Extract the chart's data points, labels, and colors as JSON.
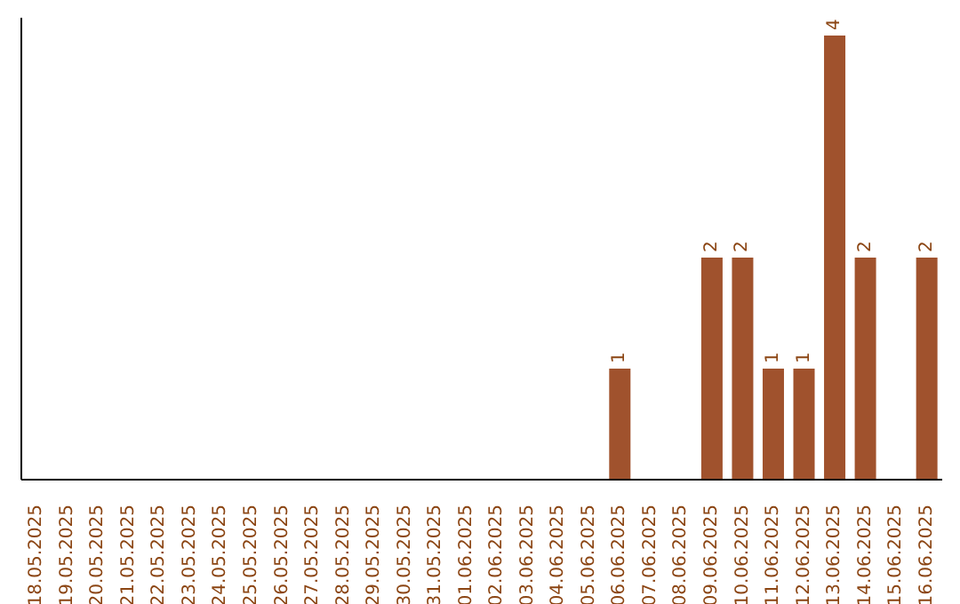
{
  "chart_data": {
    "type": "bar",
    "categories": [
      "18.05.2025",
      "19.05.2025",
      "20.05.2025",
      "21.05.2025",
      "22.05.2025",
      "23.05.2025",
      "24.05.2025",
      "25.05.2025",
      "26.05.2025",
      "27.05.2025",
      "28.05.2025",
      "29.05.2025",
      "30.05.2025",
      "31.05.2025",
      "01.06.2025",
      "02.06.2025",
      "03.06.2025",
      "04.06.2025",
      "05.06.2025",
      "06.06.2025",
      "07.06.2025",
      "08.06.2025",
      "09.06.2025",
      "10.06.2025",
      "11.06.2025",
      "12.06.2025",
      "13.06.2025",
      "14.06.2025",
      "15.06.2025",
      "16.06.2025"
    ],
    "values": [
      null,
      null,
      null,
      null,
      null,
      null,
      null,
      null,
      null,
      null,
      null,
      null,
      null,
      null,
      null,
      null,
      null,
      null,
      null,
      1,
      null,
      null,
      2,
      2,
      1,
      1,
      4,
      2,
      null,
      2
    ],
    "data_labels": true,
    "color": "#a0522d",
    "grid": false,
    "legend": false
  }
}
